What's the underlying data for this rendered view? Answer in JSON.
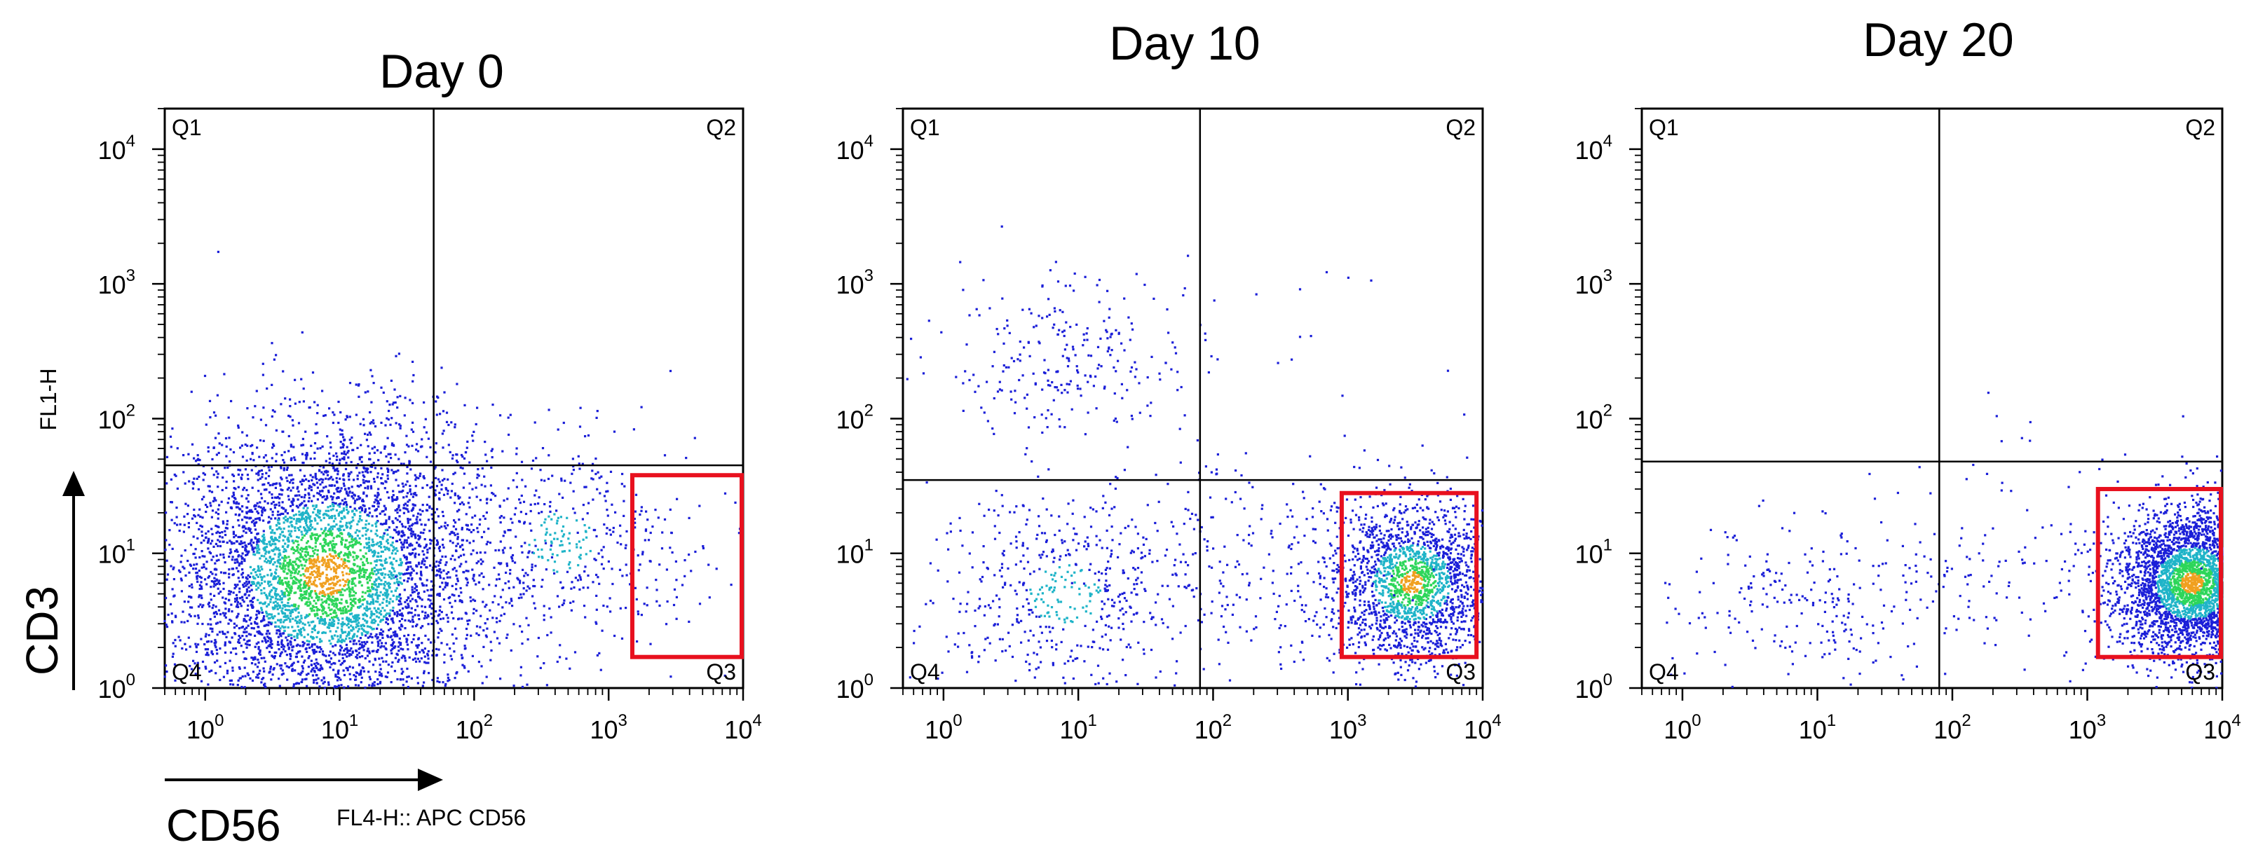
{
  "chart_data": [
    {
      "type": "scatter",
      "title": "Day 0",
      "x_scale": "log",
      "y_scale": "log",
      "xlim": [
        0.5,
        10000
      ],
      "ylim": [
        1,
        20000
      ],
      "gate_x": 50,
      "gate_y": 45,
      "quadrants": [
        "Q1",
        "Q2",
        "Q3",
        "Q4"
      ],
      "highlight_box": {
        "x": [
          1500,
          10000
        ],
        "y": [
          1.7,
          38
        ]
      },
      "clusters": [
        {
          "cx": 8,
          "cy": 7,
          "sx": 0.6,
          "sy": 0.55,
          "n": 5200
        },
        {
          "cx": 450,
          "cy": 12,
          "sx": 0.45,
          "sy": 0.4,
          "n": 420
        },
        {
          "cx": 3000,
          "cy": 8,
          "sx": 0.3,
          "sy": 0.4,
          "n": 40
        },
        {
          "cx": 60,
          "cy": 80,
          "sx": 1.2,
          "sy": 0.5,
          "n": 8
        }
      ]
    },
    {
      "type": "scatter",
      "title": "Day 10",
      "x_scale": "log",
      "y_scale": "log",
      "xlim": [
        0.5,
        10000
      ],
      "ylim": [
        1,
        20000
      ],
      "gate_x": 80,
      "gate_y": 35,
      "quadrants": [
        "Q1",
        "Q2",
        "Q3",
        "Q4"
      ],
      "highlight_box": {
        "x": [
          900,
          9000
        ],
        "y": [
          1.7,
          28
        ]
      },
      "clusters": [
        {
          "cx": 8,
          "cy": 300,
          "sx": 0.45,
          "sy": 0.3,
          "n": 260
        },
        {
          "cx": 8,
          "cy": 5,
          "sx": 0.5,
          "sy": 0.4,
          "n": 520
        },
        {
          "cx": 3000,
          "cy": 6,
          "sx": 0.3,
          "sy": 0.3,
          "n": 2000
        },
        {
          "cx": 150,
          "cy": 8,
          "sx": 0.7,
          "sy": 0.45,
          "n": 260
        },
        {
          "cx": 300,
          "cy": 400,
          "sx": 0.6,
          "sy": 0.4,
          "n": 16
        }
      ]
    },
    {
      "type": "scatter",
      "title": "Day 20",
      "x_scale": "log",
      "y_scale": "log",
      "xlim": [
        0.5,
        10000
      ],
      "ylim": [
        1,
        20000
      ],
      "gate_x": 80,
      "gate_y": 48,
      "quadrants": [
        "Q1",
        "Q2",
        "Q3",
        "Q4"
      ],
      "highlight_box": {
        "x": [
          1200,
          10000
        ],
        "y": [
          1.7,
          30
        ]
      },
      "clusters": [
        {
          "cx": 6000,
          "cy": 6,
          "sx": 0.28,
          "sy": 0.28,
          "n": 3400
        },
        {
          "cx": 8,
          "cy": 4,
          "sx": 0.5,
          "sy": 0.3,
          "n": 220
        },
        {
          "cx": 250,
          "cy": 7,
          "sx": 0.6,
          "sy": 0.4,
          "n": 140
        },
        {
          "cx": 320,
          "cy": 100,
          "sx": 0.12,
          "sy": 0.12,
          "n": 6
        }
      ]
    }
  ],
  "labels": {
    "y_axis_small": "FL1-H",
    "y_axis_big": "CD3",
    "x_axis_big": "CD56",
    "x_axis_small": "FL4-H:: APC CD56"
  },
  "colors": {
    "dot_low": "#1b1fd8",
    "dot_mid": "#1fb4c8",
    "dot_high": "#2dd65a",
    "dot_peak": "#f0a020",
    "gate_box": "#e8101e"
  }
}
